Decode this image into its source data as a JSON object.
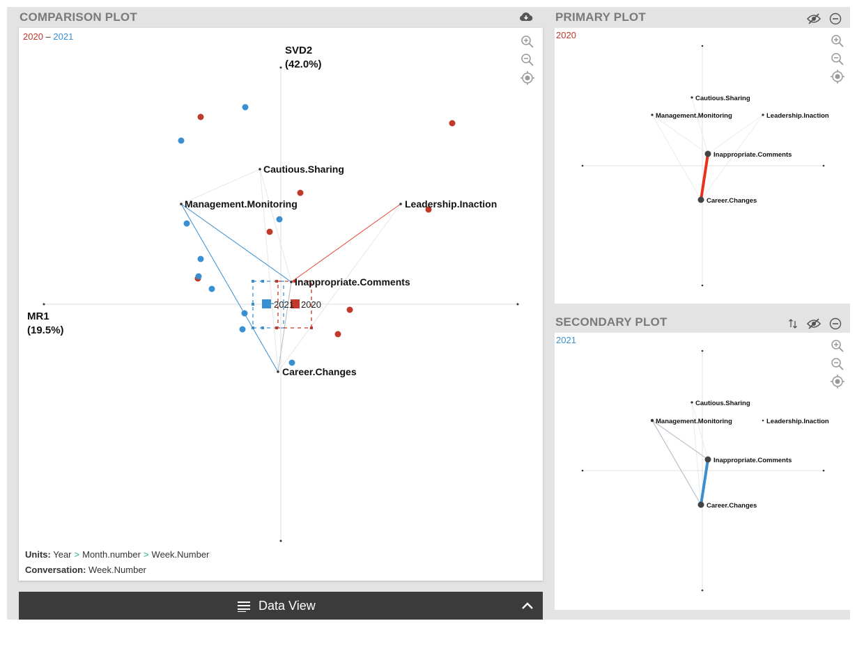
{
  "colors": {
    "y2020": "#c0392b",
    "y2021": "#3a8fd1",
    "panel_bg": "#e3e3e3",
    "title": "#7a7a7a",
    "dataview_bg": "#3b3b3b"
  },
  "comparison": {
    "title": "COMPARISON PLOT",
    "download_icon": "cloud-download-icon",
    "legend": {
      "a": "2020",
      "dash": "–",
      "b": "2021"
    },
    "axis_y": {
      "name": "SVD2",
      "pct": "(42.0%)"
    },
    "axis_x": {
      "name": "MR1",
      "pct": "(19.5%)"
    },
    "nodes": [
      "Cautious.Sharing",
      "Management.Monitoring",
      "Leadership.Inaction",
      "Inappropriate.Comments",
      "Career.Changes"
    ],
    "centroids": {
      "a": "2020",
      "b": "2021"
    },
    "units_label": "Units:",
    "units_path": [
      "Year",
      "Month.number",
      "Week.Number"
    ],
    "conversation_label": "Conversation:",
    "conversation_value": "Week.Number",
    "zoom_in_icon": "zoom-in-icon",
    "zoom_out_icon": "zoom-out-icon",
    "recenter_icon": "recenter-icon"
  },
  "primary": {
    "title": "PRIMARY PLOT",
    "year": "2020",
    "nodes": [
      "Cautious.Sharing",
      "Management.Monitoring",
      "Leadership.Inaction",
      "Inappropriate.Comments",
      "Career.Changes"
    ]
  },
  "secondary": {
    "title": "SECONDARY PLOT",
    "year": "2021",
    "nodes": [
      "Cautious.Sharing",
      "Management.Monitoring",
      "Leadership.Inaction",
      "Inappropriate.Comments",
      "Career.Changes"
    ]
  },
  "dataview": {
    "label": "Data View",
    "list_icon": "list-icon",
    "toggle_icon": "chevron-up-icon"
  }
}
